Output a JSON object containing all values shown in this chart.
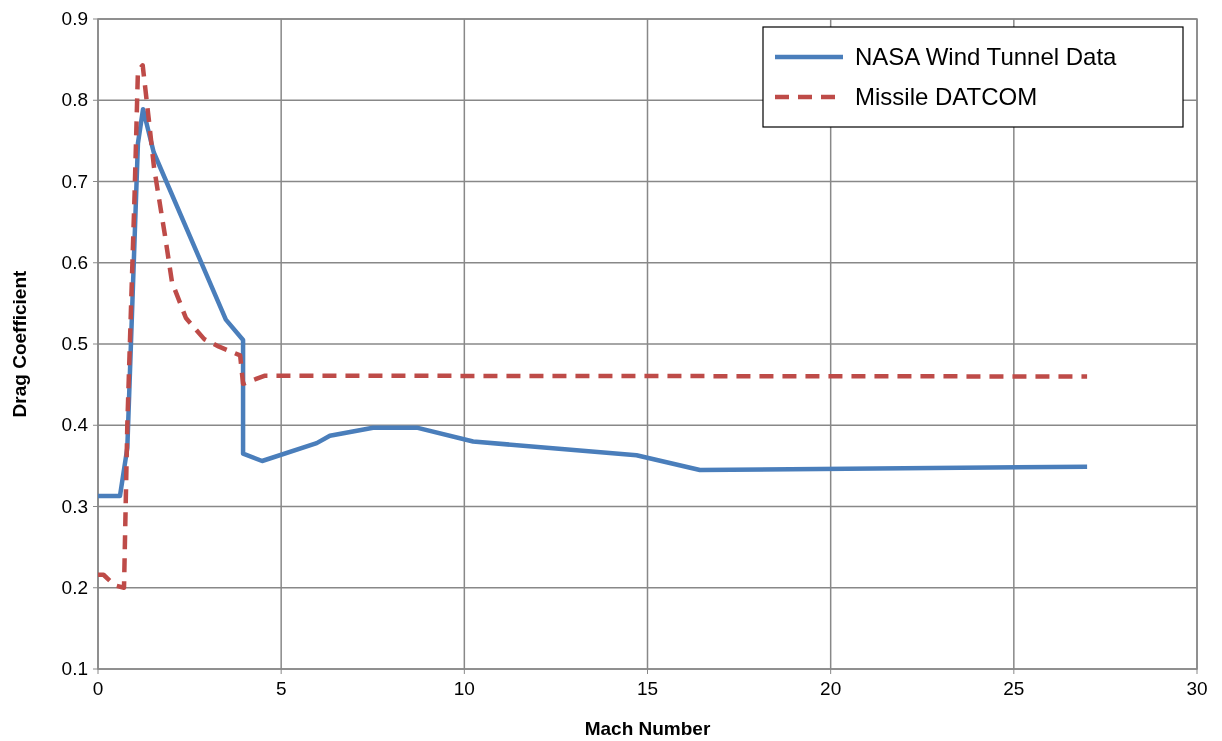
{
  "chart_data": {
    "type": "line",
    "xlabel": "Mach Number",
    "ylabel": "Drag Coefficient",
    "xlim": [
      0,
      30
    ],
    "xticks": [
      0,
      5,
      10,
      15,
      20,
      25,
      30
    ],
    "ylim": [
      0.1,
      0.9
    ],
    "yticks": [
      0.1,
      0.2,
      0.3,
      0.4,
      0.5,
      0.6,
      0.7,
      0.8,
      0.9
    ],
    "grid": true,
    "legend": "top right",
    "series": [
      {
        "name": "NASA Wind Tunnel Data",
        "color": "#4a7ebb",
        "line_style": "solid",
        "x": [
          0,
          0.6,
          0.8,
          1.09,
          1.23,
          1.52,
          3.49,
          3.96,
          3.96,
          4.48,
          5.97,
          6.33,
          7.51,
          8.7,
          10.24,
          14.7,
          16.43,
          27
        ],
        "values": [
          0.313,
          0.313,
          0.372,
          0.747,
          0.789,
          0.736,
          0.53,
          0.505,
          0.365,
          0.356,
          0.378,
          0.387,
          0.397,
          0.397,
          0.38,
          0.363,
          0.345,
          0.349
        ]
      },
      {
        "name": "Missile DATCOM",
        "color": "#be4b48",
        "line_style": "dashed",
        "x": [
          0,
          0.15,
          0.46,
          0.71,
          0.8,
          1.0,
          1.09,
          1.22,
          1.39,
          1.53,
          1.83,
          2.02,
          2.4,
          2.9,
          3.29,
          3.88,
          3.96,
          4.56,
          27
        ],
        "values": [
          0.216,
          0.216,
          0.203,
          0.2,
          0.4,
          0.686,
          0.836,
          0.843,
          0.775,
          0.717,
          0.633,
          0.576,
          0.532,
          0.506,
          0.497,
          0.486,
          0.451,
          0.461,
          0.46
        ]
      }
    ]
  }
}
